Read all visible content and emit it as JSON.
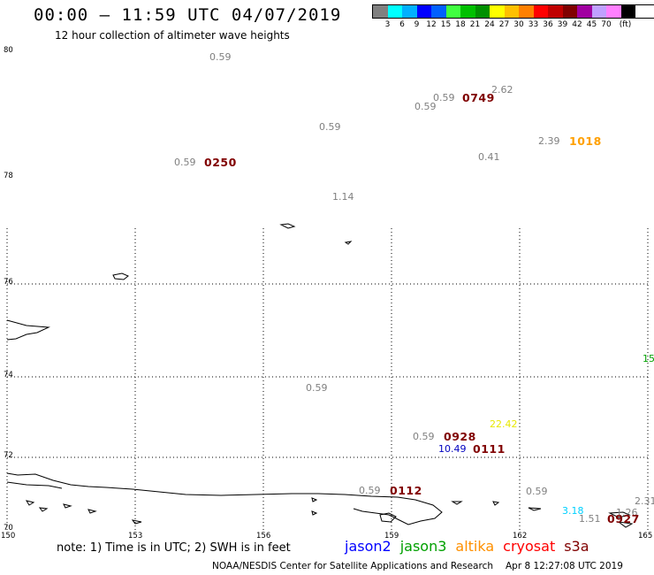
{
  "header": {
    "title": "00:00 – 11:59 UTC 04/07/2019",
    "subtitle": "12 hour collection of altimeter wave heights"
  },
  "color_scale": {
    "unit": "(ft)",
    "colors": [
      "#808080",
      "#00ffff",
      "#00b0ff",
      "#0000ff",
      "#0060ff",
      "#40ff40",
      "#00c000",
      "#009000",
      "#ffff00",
      "#ffc000",
      "#ff8000",
      "#ff0000",
      "#c00000",
      "#800000",
      "#a000a0",
      "#c0a0ff",
      "#ff80ff",
      "#000000"
    ],
    "labels": [
      "3",
      "6",
      "9",
      "12",
      "15",
      "18",
      "21",
      "24",
      "27",
      "30",
      "33",
      "36",
      "39",
      "42",
      "45",
      "70"
    ]
  },
  "axes": {
    "lat_labels": [
      "80",
      "78",
      "76",
      "74",
      "72",
      "70"
    ],
    "lon_labels": [
      "150",
      "153",
      "156",
      "159",
      "162",
      "165"
    ]
  },
  "observations": [
    {
      "text": "0.59",
      "color": "#808080",
      "kind": "swh"
    },
    {
      "text": "0.59",
      "color": "#808080",
      "kind": "swh"
    },
    {
      "text": "0749",
      "color": "#800000",
      "kind": "time"
    },
    {
      "text": "2.62",
      "color": "#808080",
      "kind": "swh"
    },
    {
      "text": "0.59",
      "color": "#808080",
      "kind": "swh"
    },
    {
      "text": "0.59",
      "color": "#808080",
      "kind": "swh"
    },
    {
      "text": "2.39",
      "color": "#808080",
      "kind": "swh"
    },
    {
      "text": "1018",
      "color": "#ffa000",
      "kind": "time"
    },
    {
      "text": "0.41",
      "color": "#808080",
      "kind": "swh"
    },
    {
      "text": "0.59",
      "color": "#808080",
      "kind": "swh"
    },
    {
      "text": "0250",
      "color": "#800000",
      "kind": "time"
    },
    {
      "text": "1.14",
      "color": "#808080",
      "kind": "swh"
    },
    {
      "text": "15",
      "color": "#00a000",
      "kind": "swh"
    },
    {
      "text": "0.59",
      "color": "#808080",
      "kind": "swh"
    },
    {
      "text": "22.42",
      "color": "#e8e800",
      "kind": "swh"
    },
    {
      "text": "0.59",
      "color": "#808080",
      "kind": "swh"
    },
    {
      "text": "0928",
      "color": "#800000",
      "kind": "time"
    },
    {
      "text": "10.49",
      "color": "#0000c0",
      "kind": "swh"
    },
    {
      "text": "0111",
      "color": "#800000",
      "kind": "time"
    },
    {
      "text": "0.59",
      "color": "#808080",
      "kind": "swh"
    },
    {
      "text": "0112",
      "color": "#800000",
      "kind": "time"
    },
    {
      "text": "0.59",
      "color": "#808080",
      "kind": "swh"
    },
    {
      "text": "2.31",
      "color": "#808080",
      "kind": "swh"
    },
    {
      "text": "3.18",
      "color": "#00d0ff",
      "kind": "swh"
    },
    {
      "text": "1.51",
      "color": "#808080",
      "kind": "swh"
    },
    {
      "text": "1.26",
      "color": "#808080",
      "kind": "swh"
    },
    {
      "text": "0927",
      "color": "#800000",
      "kind": "time"
    }
  ],
  "note": "note: 1) Time is in UTC; 2) SWH is in feet",
  "satellites": [
    {
      "name": "jason2",
      "color": "#0000ff"
    },
    {
      "name": "jason3",
      "color": "#00a000"
    },
    {
      "name": "altika",
      "color": "#ff9000"
    },
    {
      "name": "cryosat",
      "color": "#ff0000"
    },
    {
      "name": "s3a",
      "color": "#800000"
    }
  ],
  "footer": {
    "org": "NOAA/NESDIS Center for Satellite Applications and Research",
    "timestamp": "Apr  8 12:27:08 UTC 2019"
  }
}
